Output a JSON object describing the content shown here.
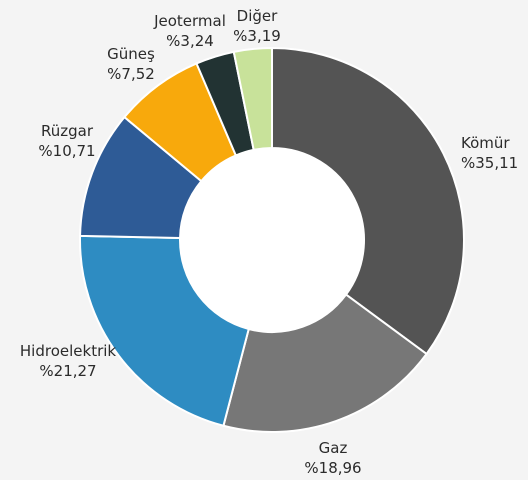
{
  "chart_data": {
    "type": "pie",
    "donut": true,
    "title": "",
    "series": [
      {
        "label": "Kömür",
        "value_text": "%35,11",
        "value": 35.11,
        "color": "#545454"
      },
      {
        "label": "Gaz",
        "value_text": "%18,96",
        "value": 18.96,
        "color": "#777777"
      },
      {
        "label": "Hidroelektrik",
        "value_text": "%21,27",
        "value": 21.27,
        "color": "#2e8cc2"
      },
      {
        "label": "Rüzgar",
        "value_text": "%10,71",
        "value": 10.71,
        "color": "#2e5b96"
      },
      {
        "label": "Güneş",
        "value_text": "%7,52",
        "value": 7.52,
        "color": "#f8a90c"
      },
      {
        "label": "Jeotermal",
        "value_text": "%3,24",
        "value": 3.24,
        "color": "#223333"
      },
      {
        "label": "Diğer",
        "value_text": "%3,19",
        "value": 3.19,
        "color": "#c8e29a"
      }
    ]
  }
}
